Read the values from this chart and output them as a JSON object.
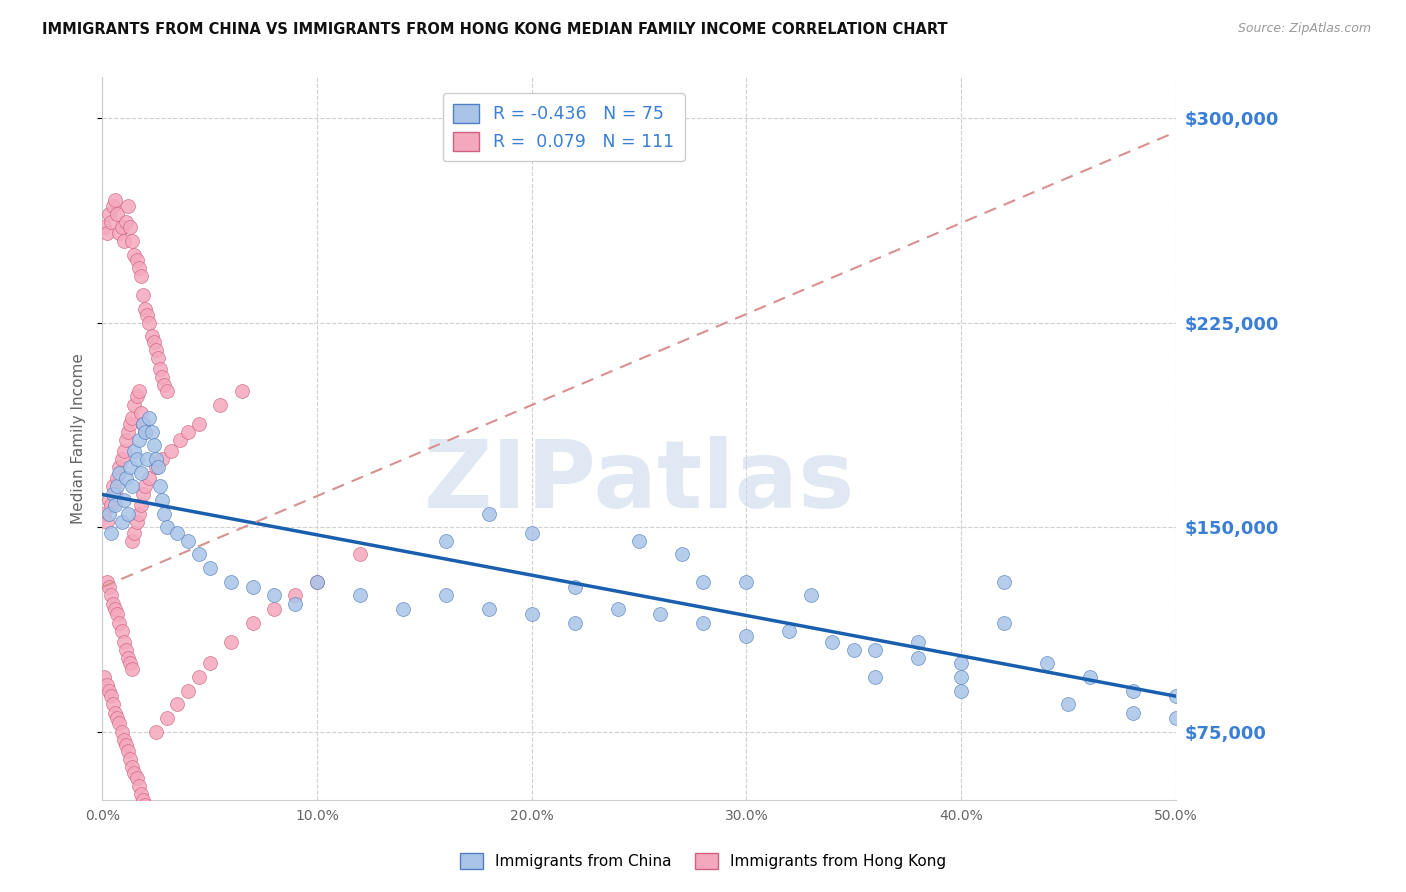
{
  "title": "IMMIGRANTS FROM CHINA VS IMMIGRANTS FROM HONG KONG MEDIAN FAMILY INCOME CORRELATION CHART",
  "source": "Source: ZipAtlas.com",
  "ylabel": "Median Family Income",
  "yticks": [
    75000,
    150000,
    225000,
    300000
  ],
  "ytick_labels": [
    "$75,000",
    "$150,000",
    "$225,000",
    "$300,000"
  ],
  "xmin": 0.0,
  "xmax": 0.5,
  "ymin": 50000,
  "ymax": 315000,
  "china_R": -0.436,
  "china_N": 75,
  "hk_R": 0.079,
  "hk_N": 111,
  "china_color": "#aac4e8",
  "hk_color": "#f4a8be",
  "china_line_color": "#1a5fae",
  "hk_line_color": "#d89090",
  "watermark": "ZIPatlas",
  "watermark_color": "#c8d8ea",
  "legend_labels": [
    "Immigrants from China",
    "Immigrants from Hong Kong"
  ],
  "china_line_x0": 0.0,
  "china_line_y0": 162000,
  "china_line_x1": 0.5,
  "china_line_y1": 88000,
  "hk_line_x0": 0.0,
  "hk_line_y0": 128000,
  "hk_line_x1": 0.5,
  "hk_line_y1": 295000,
  "china_scatter_x": [
    0.003,
    0.004,
    0.005,
    0.006,
    0.007,
    0.008,
    0.009,
    0.01,
    0.011,
    0.012,
    0.013,
    0.014,
    0.015,
    0.016,
    0.017,
    0.018,
    0.019,
    0.02,
    0.021,
    0.022,
    0.023,
    0.024,
    0.025,
    0.026,
    0.027,
    0.028,
    0.029,
    0.03,
    0.035,
    0.04,
    0.045,
    0.05,
    0.06,
    0.07,
    0.08,
    0.09,
    0.1,
    0.12,
    0.14,
    0.16,
    0.18,
    0.2,
    0.22,
    0.24,
    0.26,
    0.28,
    0.3,
    0.32,
    0.34,
    0.36,
    0.38,
    0.4,
    0.42,
    0.44,
    0.46,
    0.48,
    0.5,
    0.25,
    0.27,
    0.3,
    0.33,
    0.35,
    0.38,
    0.4,
    0.42,
    0.28,
    0.22,
    0.2,
    0.18,
    0.16,
    0.36,
    0.4,
    0.45,
    0.48,
    0.5
  ],
  "china_scatter_y": [
    155000,
    148000,
    162000,
    158000,
    165000,
    170000,
    152000,
    160000,
    168000,
    155000,
    172000,
    165000,
    178000,
    175000,
    182000,
    170000,
    188000,
    185000,
    175000,
    190000,
    185000,
    180000,
    175000,
    172000,
    165000,
    160000,
    155000,
    150000,
    148000,
    145000,
    140000,
    135000,
    130000,
    128000,
    125000,
    122000,
    130000,
    125000,
    120000,
    125000,
    120000,
    118000,
    115000,
    120000,
    118000,
    115000,
    110000,
    112000,
    108000,
    105000,
    102000,
    100000,
    115000,
    100000,
    95000,
    90000,
    88000,
    145000,
    140000,
    130000,
    125000,
    105000,
    108000,
    95000,
    130000,
    130000,
    128000,
    148000,
    155000,
    145000,
    95000,
    90000,
    85000,
    82000,
    80000
  ],
  "hk_scatter_x": [
    0.001,
    0.002,
    0.003,
    0.004,
    0.005,
    0.006,
    0.007,
    0.008,
    0.009,
    0.01,
    0.011,
    0.012,
    0.013,
    0.014,
    0.015,
    0.016,
    0.017,
    0.018,
    0.019,
    0.02,
    0.021,
    0.022,
    0.023,
    0.024,
    0.025,
    0.026,
    0.027,
    0.028,
    0.029,
    0.03,
    0.001,
    0.002,
    0.003,
    0.004,
    0.005,
    0.006,
    0.007,
    0.008,
    0.009,
    0.01,
    0.011,
    0.012,
    0.013,
    0.014,
    0.015,
    0.016,
    0.017,
    0.018,
    0.019,
    0.02,
    0.002,
    0.003,
    0.004,
    0.005,
    0.006,
    0.007,
    0.008,
    0.009,
    0.01,
    0.011,
    0.012,
    0.013,
    0.014,
    0.001,
    0.002,
    0.003,
    0.004,
    0.005,
    0.006,
    0.007,
    0.008,
    0.009,
    0.01,
    0.011,
    0.012,
    0.013,
    0.014,
    0.015,
    0.016,
    0.017,
    0.018,
    0.019,
    0.02,
    0.025,
    0.03,
    0.035,
    0.04,
    0.045,
    0.05,
    0.06,
    0.07,
    0.08,
    0.09,
    0.1,
    0.12,
    0.014,
    0.015,
    0.016,
    0.017,
    0.018,
    0.019,
    0.02,
    0.022,
    0.025,
    0.028,
    0.032,
    0.036,
    0.04,
    0.045,
    0.055,
    0.065
  ],
  "hk_scatter_y": [
    260000,
    258000,
    265000,
    262000,
    268000,
    270000,
    265000,
    258000,
    260000,
    255000,
    262000,
    268000,
    260000,
    255000,
    250000,
    248000,
    245000,
    242000,
    235000,
    230000,
    228000,
    225000,
    220000,
    218000,
    215000,
    212000,
    208000,
    205000,
    202000,
    200000,
    155000,
    152000,
    160000,
    158000,
    165000,
    162000,
    168000,
    172000,
    175000,
    178000,
    182000,
    185000,
    188000,
    190000,
    195000,
    198000,
    200000,
    192000,
    188000,
    185000,
    130000,
    128000,
    125000,
    122000,
    120000,
    118000,
    115000,
    112000,
    108000,
    105000,
    102000,
    100000,
    98000,
    95000,
    92000,
    90000,
    88000,
    85000,
    82000,
    80000,
    78000,
    75000,
    72000,
    70000,
    68000,
    65000,
    62000,
    60000,
    58000,
    55000,
    52000,
    50000,
    48000,
    75000,
    80000,
    85000,
    90000,
    95000,
    100000,
    108000,
    115000,
    120000,
    125000,
    130000,
    140000,
    145000,
    148000,
    152000,
    155000,
    158000,
    162000,
    165000,
    168000,
    172000,
    175000,
    178000,
    182000,
    185000,
    188000,
    195000,
    200000
  ]
}
